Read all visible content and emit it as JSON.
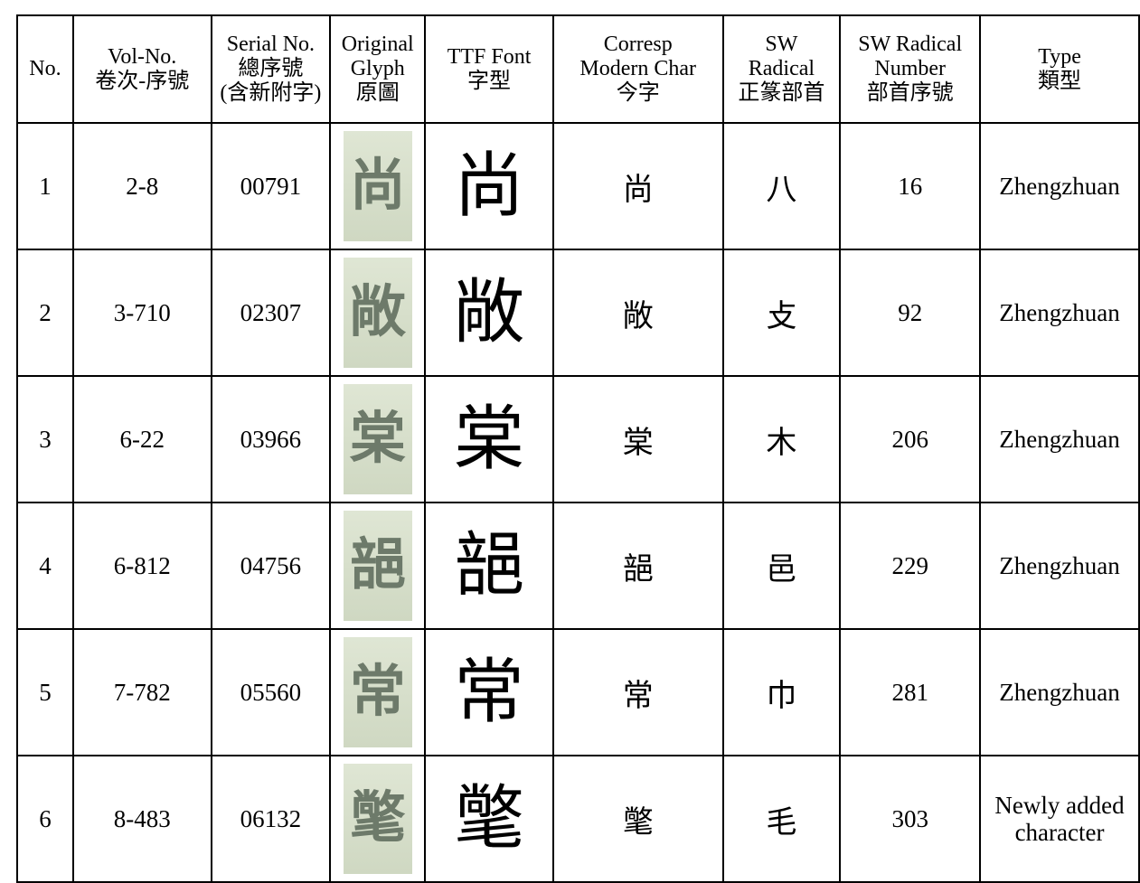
{
  "table": {
    "header": [
      "No.",
      "Vol-No.\n卷次-序號",
      "Serial No.\n總序號\n(含新附字)",
      "Original\nGlyph\n原圖",
      "TTF Font\n字型",
      "Corresp\nModern Char\n今字",
      "SW\nRadical\n正篆部首",
      "SW Radical\nNumber\n部首序號",
      "Type\n類型"
    ],
    "rows": [
      {
        "no": "1",
        "vol": "2-8",
        "serial": "00791",
        "modern": "尚",
        "radical": "八",
        "radical_no": "16",
        "type": "Zhengzhuan"
      },
      {
        "no": "2",
        "vol": "3-710",
        "serial": "02307",
        "modern": "敞",
        "radical": "攴",
        "radical_no": "92",
        "type": "Zhengzhuan"
      },
      {
        "no": "3",
        "vol": "6-22",
        "serial": "03966",
        "modern": "棠",
        "radical": "木",
        "radical_no": "206",
        "type": "Zhengzhuan"
      },
      {
        "no": "4",
        "vol": "6-812",
        "serial": "04756",
        "modern": "郶",
        "radical": "邑",
        "radical_no": "229",
        "type": "Zhengzhuan"
      },
      {
        "no": "5",
        "vol": "7-782",
        "serial": "05560",
        "modern": "常",
        "radical": "巾",
        "radical_no": "281",
        "type": "Zhengzhuan"
      },
      {
        "no": "6",
        "vol": "8-483",
        "serial": "06132",
        "modern": "氅",
        "radical": "毛",
        "radical_no": "303",
        "type": "Newly added\ncharacter"
      }
    ]
  }
}
